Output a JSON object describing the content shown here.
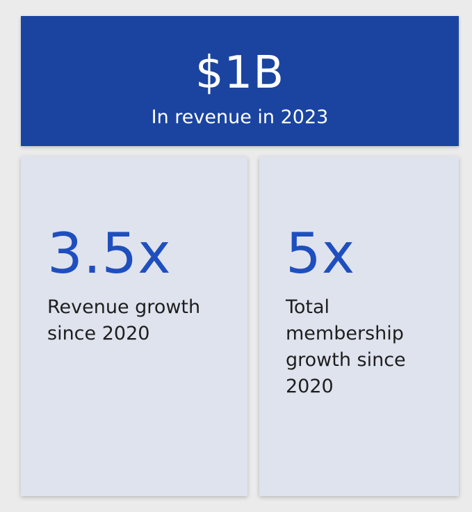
{
  "banner": {
    "value": "$1B",
    "caption": "In revenue in 2023"
  },
  "stats": [
    {
      "value": "3.5x",
      "description": "Revenue growth since 2020"
    },
    {
      "value": "5x",
      "description": "Total membership growth since 2020"
    }
  ],
  "colors": {
    "page_background": "#ebebeb",
    "banner_background": "#1a44a0",
    "banner_text": "#ffffff",
    "card_background": "#dfe3ee",
    "stat_value": "#1f4fbe",
    "stat_description": "#1e1e1e"
  }
}
